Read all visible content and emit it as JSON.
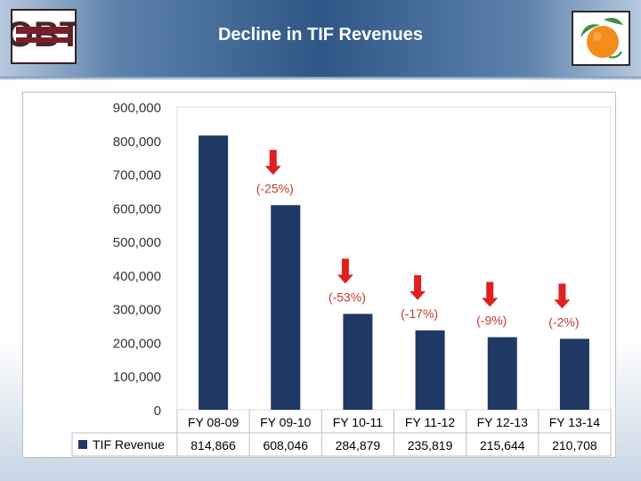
{
  "header": {
    "title": "Decline in TIF Revenues",
    "left_logo": "seal-logo",
    "right_logo": "orange-logo"
  },
  "colors": {
    "bar": "#1f3864",
    "arrow": "#e02020",
    "change_label": "#c0392b"
  },
  "chart_data": {
    "type": "bar",
    "title": "",
    "xlabel": "",
    "ylabel": "",
    "ylim": [
      0,
      900000
    ],
    "y_ticks": [
      "0",
      "100,000",
      "200,000",
      "300,000",
      "400,000",
      "500,000",
      "600,000",
      "700,000",
      "800,000",
      "900,000"
    ],
    "grid": false,
    "legend_placement": "data-table-row",
    "categories": [
      "FY 08-09",
      "FY 09-10",
      "FY 10-11",
      "FY 11-12",
      "FY 12-13",
      "FY 13-14"
    ],
    "series": [
      {
        "name": "TIF Revenue",
        "values": [
          814866,
          608046,
          284879,
          235819,
          215644,
          210708
        ],
        "value_labels": [
          "814,866",
          "608,046",
          "284,879",
          "235,819",
          "215,644",
          "210,708"
        ]
      }
    ],
    "annotations": [
      {
        "category": "FY 09-10",
        "text": "(-25%)",
        "arrow": true
      },
      {
        "category": "FY 10-11",
        "text": "(-53%)",
        "arrow": true
      },
      {
        "category": "FY 11-12",
        "text": "(-17%)",
        "arrow": true
      },
      {
        "category": "FY 12-13",
        "text": "(-9%)",
        "arrow": true
      },
      {
        "category": "FY 13-14",
        "text": "(-2%)",
        "arrow": true
      }
    ]
  }
}
